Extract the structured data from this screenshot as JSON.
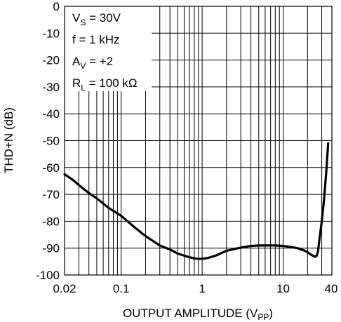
{
  "chart_data": {
    "type": "line",
    "title": "",
    "xlabel_main": "OUTPUT AMPLITUDE (V",
    "xlabel_sub": "PP",
    "xlabel_end": ")",
    "ylabel": "THD+N (dB)",
    "x_scale": "log",
    "xlim": [
      0.02,
      40
    ],
    "ylim": [
      -100,
      0
    ],
    "grid": true,
    "x_ticks": [
      0.02,
      0.1,
      1,
      10,
      40
    ],
    "x_tick_labels": [
      "0.02",
      "0.1",
      "1",
      "10",
      "40"
    ],
    "x_minor_grid": [
      0.03,
      0.04,
      0.05,
      0.06,
      0.07,
      0.08,
      0.09,
      0.2,
      0.3,
      0.4,
      0.5,
      0.6,
      0.7,
      0.8,
      0.9,
      2,
      3,
      4,
      5,
      6,
      7,
      8,
      9,
      20,
      30
    ],
    "y_ticks": [
      0,
      -10,
      -20,
      -30,
      -40,
      -50,
      -60,
      -70,
      -80,
      -90,
      -100
    ],
    "y_tick_labels": [
      "0",
      "-10",
      "-20",
      "-30",
      "-40",
      "-50",
      "-60",
      "-70",
      "-80",
      "-90",
      "-100"
    ],
    "annotations": [
      {
        "main": "V",
        "sub": "S",
        "rest": " = 30V"
      },
      {
        "main": "f = 1 kHz",
        "sub": "",
        "rest": ""
      },
      {
        "main": "A",
        "sub": "V",
        "rest": " = +2"
      },
      {
        "main": "R",
        "sub": "L",
        "rest": " = 100 kΩ"
      }
    ],
    "series": [
      {
        "x": [
          0.02,
          0.025,
          0.03,
          0.04,
          0.05,
          0.07,
          0.1,
          0.15,
          0.2,
          0.3,
          0.4,
          0.5,
          0.6,
          0.7,
          0.8,
          0.9,
          1.0,
          1.2,
          1.5,
          2,
          3,
          4,
          5,
          6,
          8,
          10,
          12,
          15,
          18,
          20,
          22,
          24,
          25,
          26,
          27,
          28,
          30,
          32,
          34,
          36
        ],
        "y": [
          -62.5,
          -64.5,
          -66.5,
          -69.5,
          -71.5,
          -75,
          -78,
          -82.5,
          -85.5,
          -89,
          -90.5,
          -92,
          -92.8,
          -93.4,
          -93.8,
          -94,
          -94,
          -93.6,
          -92.7,
          -91,
          -89.8,
          -89.2,
          -89,
          -89,
          -89,
          -89.2,
          -89.5,
          -90,
          -90.8,
          -91.5,
          -92.4,
          -93,
          -93.2,
          -92.8,
          -91,
          -87,
          -80,
          -72,
          -62,
          -51
        ]
      }
    ]
  }
}
